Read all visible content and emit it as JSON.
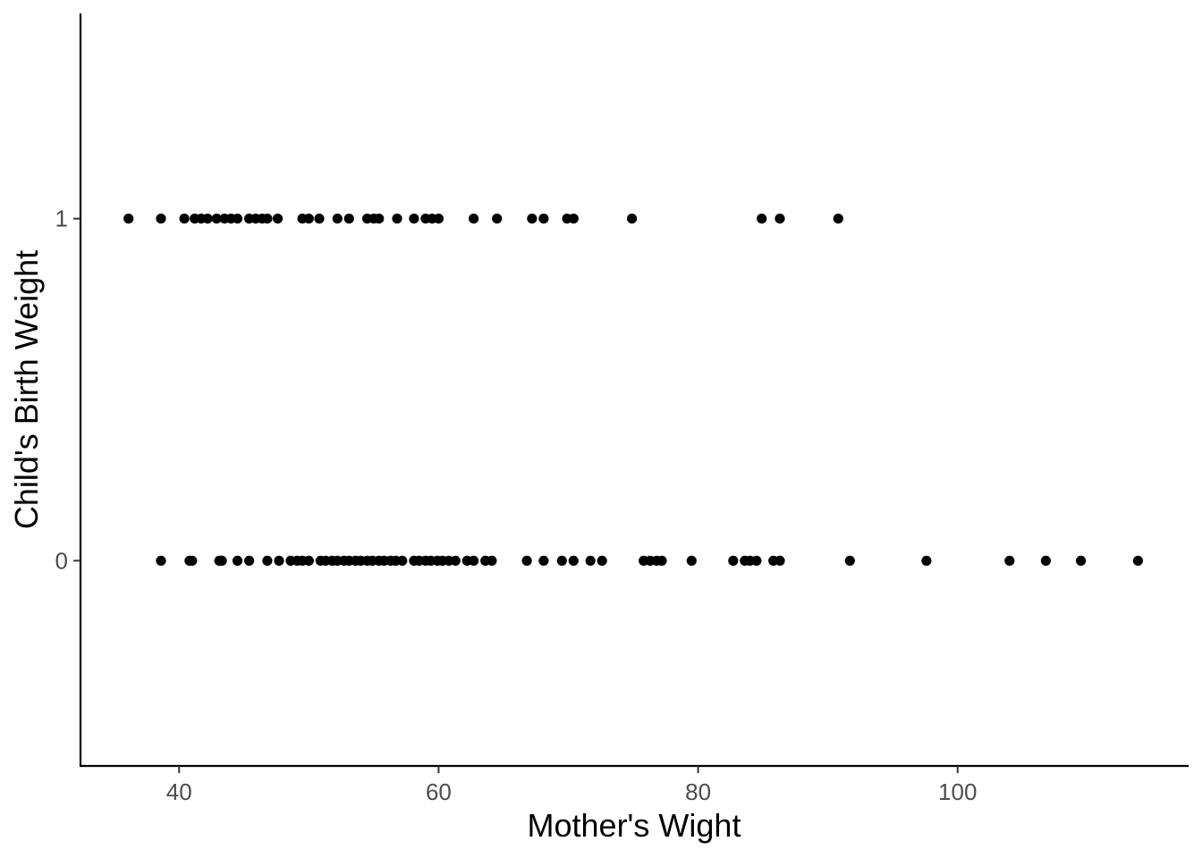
{
  "chart_data": {
    "type": "scatter",
    "title": "",
    "xlabel": "Mother's Wight",
    "ylabel": "Child's Birth Weight",
    "xlim": [
      32.4,
      117.8
    ],
    "ylim": [
      -0.6,
      1.6
    ],
    "xticks": [
      40,
      60,
      80,
      100
    ],
    "yticks": [
      0,
      1
    ],
    "grid": false,
    "legend": "none",
    "point_color": "#000000",
    "series": [
      {
        "points": [
          [
            36.1,
            1
          ],
          [
            38.6,
            1
          ],
          [
            40.4,
            1
          ],
          [
            41.2,
            1
          ],
          [
            41.7,
            1
          ],
          [
            42.2,
            1
          ],
          [
            42.9,
            1
          ],
          [
            43.5,
            1
          ],
          [
            44.0,
            1
          ],
          [
            44.5,
            1
          ],
          [
            45.4,
            1
          ],
          [
            45.9,
            1
          ],
          [
            46.4,
            1
          ],
          [
            46.8,
            1
          ],
          [
            47.6,
            1
          ],
          [
            49.5,
            1
          ],
          [
            50.0,
            1
          ],
          [
            50.8,
            1
          ],
          [
            52.2,
            1
          ],
          [
            53.1,
            1
          ],
          [
            54.5,
            1
          ],
          [
            55.0,
            1
          ],
          [
            55.4,
            1
          ],
          [
            56.8,
            1
          ],
          [
            58.1,
            1
          ],
          [
            59.0,
            1
          ],
          [
            59.5,
            1
          ],
          [
            60.0,
            1
          ],
          [
            62.7,
            1
          ],
          [
            64.5,
            1
          ],
          [
            67.2,
            1
          ],
          [
            68.1,
            1
          ],
          [
            69.9,
            1
          ],
          [
            70.4,
            1
          ],
          [
            74.9,
            1
          ],
          [
            84.9,
            1
          ],
          [
            86.3,
            1
          ],
          [
            90.8,
            1
          ],
          [
            38.6,
            0
          ],
          [
            40.8,
            0
          ],
          [
            41.0,
            0
          ],
          [
            43.1,
            0
          ],
          [
            43.2,
            0
          ],
          [
            43.3,
            0
          ],
          [
            44.5,
            0
          ],
          [
            45.4,
            0
          ],
          [
            46.8,
            0
          ],
          [
            47.7,
            0
          ],
          [
            48.6,
            0
          ],
          [
            49.1,
            0
          ],
          [
            49.5,
            0
          ],
          [
            50.0,
            0
          ],
          [
            50.9,
            0
          ],
          [
            51.3,
            0
          ],
          [
            51.8,
            0
          ],
          [
            52.2,
            0
          ],
          [
            52.7,
            0
          ],
          [
            53.1,
            0
          ],
          [
            53.6,
            0
          ],
          [
            54.0,
            0
          ],
          [
            54.5,
            0
          ],
          [
            54.9,
            0
          ],
          [
            55.4,
            0
          ],
          [
            55.8,
            0
          ],
          [
            56.3,
            0
          ],
          [
            56.7,
            0
          ],
          [
            57.2,
            0
          ],
          [
            58.1,
            0
          ],
          [
            58.5,
            0
          ],
          [
            59.0,
            0
          ],
          [
            59.4,
            0
          ],
          [
            59.9,
            0
          ],
          [
            60.3,
            0
          ],
          [
            60.8,
            0
          ],
          [
            61.3,
            0
          ],
          [
            62.2,
            0
          ],
          [
            62.7,
            0
          ],
          [
            63.6,
            0
          ],
          [
            64.1,
            0
          ],
          [
            66.8,
            0
          ],
          [
            68.1,
            0
          ],
          [
            69.5,
            0
          ],
          [
            70.4,
            0
          ],
          [
            71.7,
            0
          ],
          [
            72.6,
            0
          ],
          [
            75.8,
            0
          ],
          [
            76.3,
            0
          ],
          [
            76.8,
            0
          ],
          [
            77.2,
            0
          ],
          [
            79.5,
            0
          ],
          [
            82.7,
            0
          ],
          [
            83.6,
            0
          ],
          [
            84.0,
            0
          ],
          [
            84.5,
            0
          ],
          [
            85.8,
            0
          ],
          [
            86.3,
            0
          ],
          [
            91.7,
            0
          ],
          [
            97.6,
            0
          ],
          [
            104.0,
            0
          ],
          [
            106.8,
            0
          ],
          [
            109.5,
            0
          ],
          [
            113.9,
            0
          ]
        ]
      }
    ]
  }
}
